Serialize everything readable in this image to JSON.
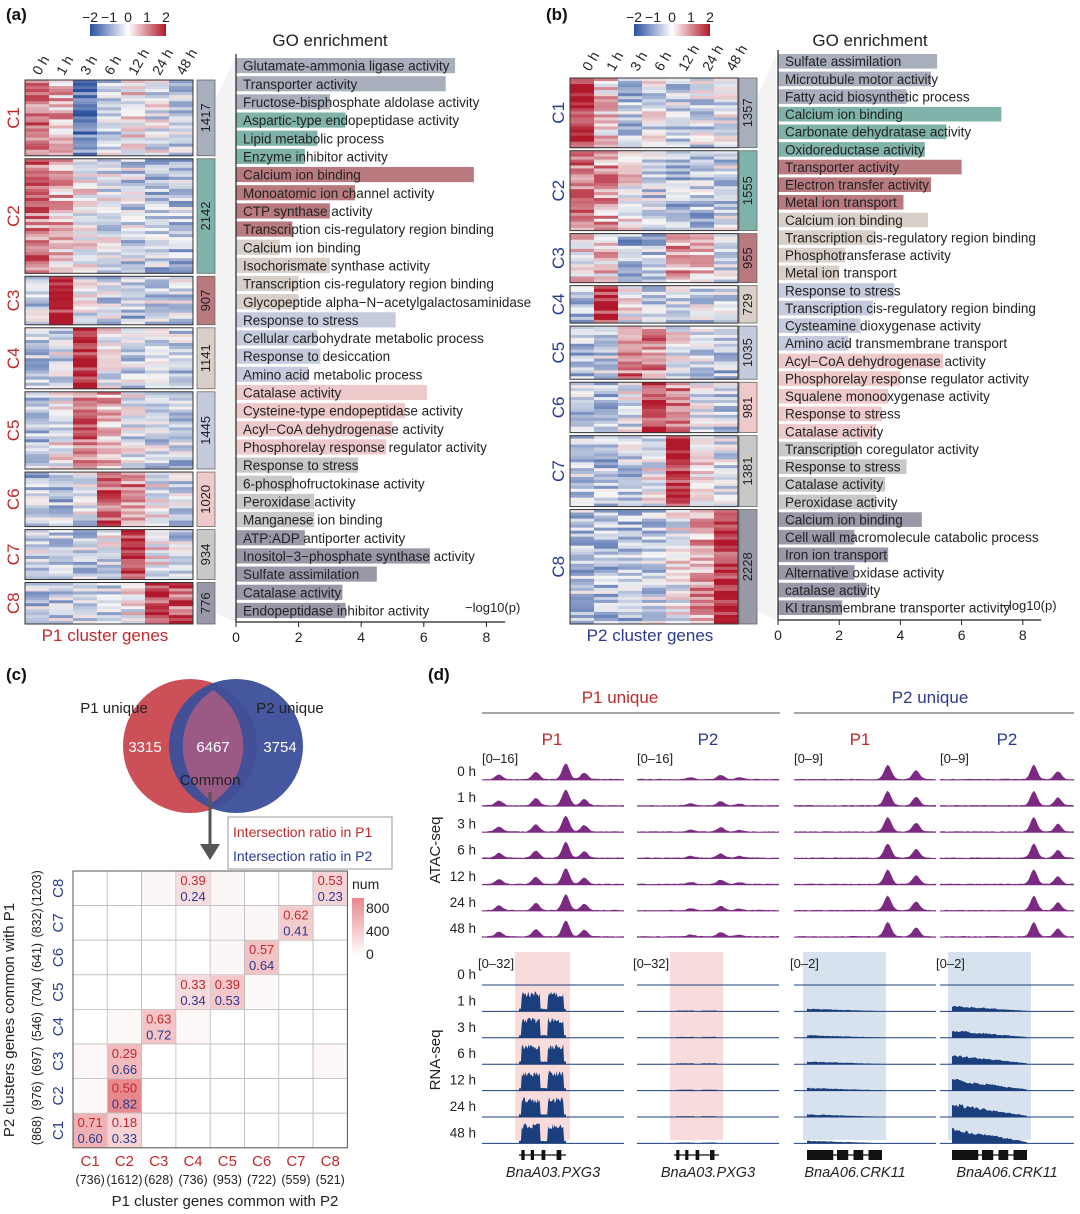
{
  "panel_labels": [
    "(a)",
    "(b)",
    "(c)",
    "(d)"
  ],
  "colorbar": {
    "ticks": [
      "−2",
      "−1",
      "0",
      "1",
      "2"
    ]
  },
  "timepoints": [
    "0 h",
    "1 h",
    "3 h",
    "6 h",
    "12 h",
    "24 h",
    "48 h"
  ],
  "go_title": "GO enrichment",
  "log_label": "−log10(p)",
  "x_ticks": [
    "0",
    "2",
    "4",
    "6",
    "8"
  ],
  "panel_a": {
    "footer": "P1 cluster genes",
    "clusters": [
      {
        "name": "C1",
        "count": "1417",
        "color": "#a9aebd"
      },
      {
        "name": "C2",
        "count": "2142",
        "color": "#7fb3a9"
      },
      {
        "name": "C3",
        "count": "907",
        "color": "#b87a7f"
      },
      {
        "name": "C4",
        "count": "1141",
        "color": "#d8d0c8"
      },
      {
        "name": "C5",
        "count": "1445",
        "color": "#c5cbdc"
      },
      {
        "name": "C6",
        "count": "1020",
        "color": "#eec9ca"
      },
      {
        "name": "C7",
        "count": "934",
        "color": "#c8c8c8"
      },
      {
        "name": "C8",
        "count": "776",
        "color": "#9898a8"
      }
    ],
    "go_terms": [
      {
        "term": "Glutamate-ammonia ligase activity",
        "value": 7.0,
        "color": "#a9aebd"
      },
      {
        "term": "Transporter activity",
        "value": 6.7,
        "color": "#a9aebd"
      },
      {
        "term": "Fructose-bisphosphate aldolase activity",
        "value": 3.0,
        "color": "#a9aebd"
      },
      {
        "term": "Aspartic-type endopeptidase activity",
        "value": 3.5,
        "color": "#7fb3a9"
      },
      {
        "term": "Lipid metabolic process",
        "value": 2.6,
        "color": "#7fb3a9"
      },
      {
        "term": "Enzyme inhibitor activity",
        "value": 2.2,
        "color": "#7fb3a9"
      },
      {
        "term": "Calcium ion binding",
        "value": 7.6,
        "color": "#b87a7f"
      },
      {
        "term": "Monoatomic ion channel activity",
        "value": 3.8,
        "color": "#b87a7f"
      },
      {
        "term": "CTP synthase activity",
        "value": 3.0,
        "color": "#b87a7f"
      },
      {
        "term": "Transcription cis-regulatory region binding",
        "value": 1.8,
        "color": "#b87a7f"
      },
      {
        "term": "Calcium ion binding",
        "value": 1.4,
        "color": "#d8d0c8"
      },
      {
        "term": "Isochorismate synthase activity",
        "value": 3.0,
        "color": "#d8d0c8"
      },
      {
        "term": "Transcription cis-regulatory region binding",
        "value": 2.0,
        "color": "#d8d0c8"
      },
      {
        "term": "Glycopeptide alpha−N−acetylgalactosaminidase",
        "value": 2.0,
        "color": "#d8d0c8"
      },
      {
        "term": "Response to stress",
        "value": 5.1,
        "color": "#c5cbdc"
      },
      {
        "term": "Cellular carbohydrate metabolic process",
        "value": 2.6,
        "color": "#c5cbdc"
      },
      {
        "term": "Response to desiccation",
        "value": 2.7,
        "color": "#c5cbdc"
      },
      {
        "term": "Amino acid metabolic process",
        "value": 2.3,
        "color": "#c5cbdc"
      },
      {
        "term": "Catalase activity",
        "value": 6.1,
        "color": "#eec9ca"
      },
      {
        "term": "Cysteine-type endopeptidase activity",
        "value": 5.4,
        "color": "#eec9ca"
      },
      {
        "term": "Acyl−CoA dehydrogenase activity",
        "value": 5.0,
        "color": "#eec9ca"
      },
      {
        "term": "Phosphorelay response regulator activity",
        "value": 4.8,
        "color": "#eec9ca"
      },
      {
        "term": "Response to stress",
        "value": 3.9,
        "color": "#c8c8c8"
      },
      {
        "term": "6-phosphofructokinase activity",
        "value": 1.8,
        "color": "#c8c8c8"
      },
      {
        "term": "Peroxidase activity",
        "value": 2.5,
        "color": "#c8c8c8"
      },
      {
        "term": "Manganese ion binding",
        "value": 2.5,
        "color": "#c8c8c8"
      },
      {
        "term": "ATP:ADP antiporter activity",
        "value": 2.2,
        "color": "#9898a8"
      },
      {
        "term": "Inositol−3−phosphate synthase activity",
        "value": 6.2,
        "color": "#9898a8"
      },
      {
        "term": "Sulfate assimilation",
        "value": 4.5,
        "color": "#9898a8"
      },
      {
        "term": "Catalase activity",
        "value": 3.4,
        "color": "#9898a8"
      },
      {
        "term": "Endopeptidase inhibitor activity",
        "value": 3.5,
        "color": "#9898a8"
      }
    ]
  },
  "panel_b": {
    "footer": "P2 cluster genes",
    "clusters": [
      {
        "name": "C1",
        "count": "1357",
        "color": "#a9aebd"
      },
      {
        "name": "C2",
        "count": "1555",
        "color": "#7fb3a9"
      },
      {
        "name": "C3",
        "count": "955",
        "color": "#b87a7f"
      },
      {
        "name": "C4",
        "count": "729",
        "color": "#d8d0c8"
      },
      {
        "name": "C5",
        "count": "1035",
        "color": "#c5cbdc"
      },
      {
        "name": "C6",
        "count": "981",
        "color": "#eec9ca"
      },
      {
        "name": "C7",
        "count": "1381",
        "color": "#c8c8c8"
      },
      {
        "name": "C8",
        "count": "2228",
        "color": "#9898a8"
      }
    ],
    "go_terms": [
      {
        "term": "Sulfate assimilation",
        "value": 5.2,
        "color": "#a9aebd"
      },
      {
        "term": "Microtubule motor activity",
        "value": 5.0,
        "color": "#a9aebd"
      },
      {
        "term": "Fatty acid biosynthetic process",
        "value": 4.2,
        "color": "#a9aebd"
      },
      {
        "term": "Calcium ion binding",
        "value": 7.3,
        "color": "#7fb3a9"
      },
      {
        "term": "Carbonate dehydratase activity",
        "value": 5.5,
        "color": "#7fb3a9"
      },
      {
        "term": "Oxidoreductase activity",
        "value": 4.8,
        "color": "#7fb3a9"
      },
      {
        "term": "Transporter activity",
        "value": 6.0,
        "color": "#b87a7f"
      },
      {
        "term": "Electron transfer activity",
        "value": 5.0,
        "color": "#b87a7f"
      },
      {
        "term": "Metal ion transport",
        "value": 4.1,
        "color": "#b87a7f"
      },
      {
        "term": "Calcium ion binding",
        "value": 4.9,
        "color": "#d8d0c8"
      },
      {
        "term": "Transcription cis-regulatory region binding",
        "value": 3.2,
        "color": "#d8d0c8"
      },
      {
        "term": "Phosphotransferase activity",
        "value": 2.2,
        "color": "#d8d0c8"
      },
      {
        "term": "Metal ion transport",
        "value": 2.0,
        "color": "#d8d0c8"
      },
      {
        "term": "Response to stress",
        "value": 3.8,
        "color": "#c5cbdc"
      },
      {
        "term": "Transcription cis-regulatory region binding",
        "value": 3.1,
        "color": "#c5cbdc"
      },
      {
        "term": "Cysteamine dioxygenase activity",
        "value": 2.7,
        "color": "#c5cbdc"
      },
      {
        "term": "Amino acid transmembrane transport",
        "value": 2.3,
        "color": "#c5cbdc"
      },
      {
        "term": "Acyl−CoA dehydrogenase activity",
        "value": 5.4,
        "color": "#eec9ca"
      },
      {
        "term": "Phosphorelay response regulator activity",
        "value": 4.0,
        "color": "#eec9ca"
      },
      {
        "term": "Squalene monooxygenase activity",
        "value": 3.6,
        "color": "#eec9ca"
      },
      {
        "term": "Response to stress",
        "value": 3.4,
        "color": "#eec9ca"
      },
      {
        "term": "Catalase activity",
        "value": 3.2,
        "color": "#eec9ca"
      },
      {
        "term": "Transcription coregulator activity",
        "value": 2.6,
        "color": "#c8c8c8"
      },
      {
        "term": "Response to stress",
        "value": 4.2,
        "color": "#c8c8c8"
      },
      {
        "term": "Catalase activity",
        "value": 3.5,
        "color": "#c8c8c8"
      },
      {
        "term": "Peroxidase activity",
        "value": 3.2,
        "color": "#c8c8c8"
      },
      {
        "term": "Calcium ion binding",
        "value": 4.7,
        "color": "#9898a8"
      },
      {
        "term": "Cell wall macromolecule catabolic process",
        "value": 2.5,
        "color": "#9898a8"
      },
      {
        "term": "Iron ion transport",
        "value": 3.6,
        "color": "#9898a8"
      },
      {
        "term": "Alternative oxidase activity",
        "value": 2.5,
        "color": "#9898a8"
      },
      {
        "term": "catalase activity",
        "value": 2.9,
        "color": "#9898a8"
      },
      {
        "term": "KI transmembrane transporter activity",
        "value": 2.1,
        "color": "#9898a8"
      }
    ]
  },
  "venn": {
    "left_label": "P1 unique",
    "right_label": "P2 unique",
    "left_value": "3315",
    "center_value": "6467",
    "right_value": "3754",
    "center_label": "Common"
  },
  "legend_c": {
    "red_text": "Intersection ratio in P1",
    "blue_text": "Intersection ratio in P2",
    "num_title": "num",
    "num_ticks": [
      "800",
      "400",
      "0"
    ]
  },
  "matrix": {
    "y_title": "P2 clusters genes common with P1",
    "x_title": "P1 cluster genes common with P2",
    "cols": [
      "C1",
      "C2",
      "C3",
      "C4",
      "C5",
      "C6",
      "C7",
      "C8"
    ],
    "col_counts": [
      "(736)",
      "(1612)",
      "(628)",
      "(736)",
      "(953)",
      "(722)",
      "(559)",
      "(521)"
    ],
    "rows": [
      "C8",
      "C7",
      "C6",
      "C5",
      "C4",
      "C3",
      "C2",
      "C1"
    ],
    "row_counts": [
      "(1203)",
      "(832)",
      "(641)",
      "(704)",
      "(546)",
      "(697)",
      "(976)",
      "(868)"
    ],
    "cells": [
      {
        "row": 0,
        "col": 3,
        "p1": "0.39",
        "p2": "0.24",
        "num": 220
      },
      {
        "row": 0,
        "col": 7,
        "p1": "0.53",
        "p2": "0.23",
        "num": 280
      },
      {
        "row": 1,
        "col": 6,
        "p1": "0.62",
        "p2": "0.41",
        "num": 340
      },
      {
        "row": 2,
        "col": 5,
        "p1": "0.57",
        "p2": "0.64",
        "num": 410
      },
      {
        "row": 3,
        "col": 3,
        "p1": "0.33",
        "p2": "0.34",
        "num": 240
      },
      {
        "row": 3,
        "col": 4,
        "p1": "0.39",
        "p2": "0.53",
        "num": 370
      },
      {
        "row": 4,
        "col": 2,
        "p1": "0.63",
        "p2": "0.72",
        "num": 395
      },
      {
        "row": 5,
        "col": 1,
        "p1": "0.29",
        "p2": "0.66",
        "num": 460
      },
      {
        "row": 6,
        "col": 1,
        "p1": "0.50",
        "p2": "0.82",
        "num": 800
      },
      {
        "row": 7,
        "col": 0,
        "p1": "0.71",
        "p2": "0.60",
        "num": 520
      },
      {
        "row": 7,
        "col": 1,
        "p1": "0.18",
        "p2": "0.33",
        "num": 290
      }
    ],
    "light_cells": [
      {
        "row": 0,
        "col": 2,
        "num": 60
      },
      {
        "row": 0,
        "col": 4,
        "num": 60
      },
      {
        "row": 1,
        "col": 4,
        "num": 60
      },
      {
        "row": 1,
        "col": 5,
        "num": 60
      },
      {
        "row": 2,
        "col": 4,
        "num": 60
      },
      {
        "row": 3,
        "col": 5,
        "num": 40
      },
      {
        "row": 4,
        "col": 1,
        "num": 50
      },
      {
        "row": 4,
        "col": 3,
        "num": 50
      },
      {
        "row": 5,
        "col": 0,
        "num": 50
      },
      {
        "row": 5,
        "col": 7,
        "num": 50
      },
      {
        "row": 6,
        "col": 0,
        "num": 40
      }
    ]
  },
  "panel_d": {
    "group_p1_unique": "P1 unique",
    "group_p2_unique": "P2 unique",
    "col_headers": [
      "P1",
      "P2",
      "P1",
      "P2"
    ],
    "atac_label": "ATAC-seq",
    "rna_label": "RNA-seq",
    "atac_ranges": [
      "[0–16]",
      "[0–16]",
      "[0–9]",
      "[0–9]"
    ],
    "rna_ranges": [
      "[0–32]",
      "[0–32]",
      "[0–2]",
      "[0–2]"
    ],
    "track_times": [
      "0 h",
      "1 h",
      "3 h",
      "6 h",
      "12 h",
      "24 h",
      "48 h"
    ],
    "genes": [
      "BnaA03.PXG3",
      "BnaA03.PXG3",
      "BnaA06.CRK11",
      "BnaA06.CRK11"
    ]
  },
  "colors": {
    "atac": "#7b2a82",
    "rna": "#1a3f7c",
    "hl_red": "#f8dcdc",
    "hl_blue": "#d8e2ee",
    "label_red": "#c0282c",
    "label_blue": "#2a3a8f"
  }
}
